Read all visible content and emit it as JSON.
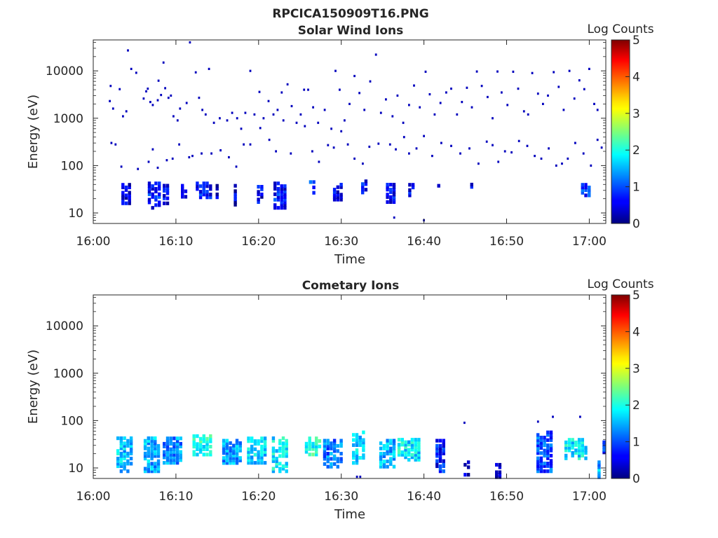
{
  "figure_title": "RPCICA150909T16.PNG",
  "chart_data": [
    {
      "type": "heatmap",
      "title": "Solar Wind Ions",
      "xlabel": "Time",
      "ylabel": "Energy (eV)",
      "y_scale": "log",
      "y_range": [
        6,
        45000
      ],
      "y_ticks": [
        10,
        100,
        1000,
        10000
      ],
      "y_tick_labels": [
        "10",
        "100",
        "1000",
        "10000"
      ],
      "x_range": [
        "16:00",
        "17:02"
      ],
      "x_tick_labels": [
        "16:00",
        "16:10",
        "16:20",
        "16:30",
        "16:40",
        "16:50",
        "17:00"
      ],
      "colorbar": {
        "label": "Log Counts",
        "range": [
          0,
          5
        ],
        "ticks": [
          "0",
          "1",
          "2",
          "3",
          "4",
          "5"
        ],
        "colormap": "jet"
      },
      "clusters": [
        {
          "t0": 3.4,
          "t1": 4.4,
          "e0": 15,
          "e1": 42,
          "v": 0.5
        },
        {
          "t0": 6.6,
          "t1": 8.0,
          "e0": 12,
          "e1": 45,
          "v": 0.7
        },
        {
          "t0": 8.4,
          "t1": 9.2,
          "e0": 15,
          "e1": 40,
          "v": 0.5
        },
        {
          "t0": 10.6,
          "t1": 11.2,
          "e0": 18,
          "e1": 40,
          "v": 0.4
        },
        {
          "t0": 12.4,
          "t1": 14.3,
          "e0": 20,
          "e1": 45,
          "v": 0.7
        },
        {
          "t0": 14.8,
          "t1": 15.2,
          "e0": 20,
          "e1": 40,
          "v": 0.4
        },
        {
          "t0": 17.0,
          "t1": 17.3,
          "e0": 14,
          "e1": 40,
          "v": 0.4
        },
        {
          "t0": 19.8,
          "t1": 20.3,
          "e0": 16,
          "e1": 38,
          "v": 0.5
        },
        {
          "t0": 21.8,
          "t1": 23.1,
          "e0": 12,
          "e1": 45,
          "v": 0.7
        },
        {
          "t0": 26.1,
          "t1": 26.9,
          "e0": 25,
          "e1": 48,
          "v": 1.0
        },
        {
          "t0": 29.0,
          "t1": 29.8,
          "e0": 18,
          "e1": 42,
          "v": 0.5
        },
        {
          "t0": 32.4,
          "t1": 33.0,
          "e0": 22,
          "e1": 50,
          "v": 0.6
        },
        {
          "t0": 35.4,
          "t1": 36.2,
          "e0": 16,
          "e1": 42,
          "v": 0.6
        },
        {
          "t0": 38.1,
          "t1": 38.9,
          "e0": 22,
          "e1": 42,
          "v": 0.6
        },
        {
          "t0": 41.6,
          "t1": 42.0,
          "e0": 24,
          "e1": 40,
          "v": 0.4
        },
        {
          "t0": 45.6,
          "t1": 46.0,
          "e0": 30,
          "e1": 42,
          "v": 0.4
        },
        {
          "t0": 59.0,
          "t1": 60.0,
          "e0": 22,
          "e1": 42,
          "v": 0.8
        }
      ],
      "points": [
        [
          2.0,
          2300
        ],
        [
          2.1,
          4800
        ],
        [
          2.4,
          1600
        ],
        [
          3.2,
          4100
        ],
        [
          3.6,
          1100
        ],
        [
          4.0,
          1400
        ],
        [
          4.2,
          27000
        ],
        [
          4.6,
          11000
        ],
        [
          5.2,
          9100
        ],
        [
          6.1,
          2600
        ],
        [
          6.4,
          3700
        ],
        [
          6.6,
          4200
        ],
        [
          6.9,
          2200
        ],
        [
          7.2,
          1900
        ],
        [
          7.8,
          2400
        ],
        [
          7.9,
          6200
        ],
        [
          8.2,
          3100
        ],
        [
          8.5,
          15000
        ],
        [
          8.7,
          4300
        ],
        [
          9.1,
          2700
        ],
        [
          9.4,
          3000
        ],
        [
          9.7,
          1100
        ],
        [
          10.2,
          900
        ],
        [
          10.5,
          1600
        ],
        [
          11.3,
          2100
        ],
        [
          12.4,
          9300
        ],
        [
          12.8,
          2700
        ],
        [
          13.2,
          1500
        ],
        [
          13.6,
          1200
        ],
        [
          14.0,
          11000
        ],
        [
          14.6,
          800
        ],
        [
          15.3,
          1000
        ],
        [
          16.2,
          900
        ],
        [
          16.8,
          1300
        ],
        [
          17.4,
          1000
        ],
        [
          17.9,
          600
        ],
        [
          18.4,
          1300
        ],
        [
          19.0,
          10000
        ],
        [
          19.5,
          1200
        ],
        [
          20.1,
          3600
        ],
        [
          20.6,
          1000
        ],
        [
          21.2,
          2300
        ],
        [
          21.8,
          1200
        ],
        [
          22.3,
          1500
        ],
        [
          22.8,
          3500
        ],
        [
          23.5,
          5200
        ],
        [
          24.0,
          1800
        ],
        [
          24.6,
          800
        ],
        [
          25.1,
          1200
        ],
        [
          25.5,
          4000
        ],
        [
          26.0,
          4000
        ],
        [
          26.6,
          1700
        ],
        [
          27.2,
          800
        ],
        [
          28.0,
          1500
        ],
        [
          28.8,
          600
        ],
        [
          29.3,
          10000
        ],
        [
          29.8,
          4000
        ],
        [
          30.4,
          900
        ],
        [
          31.0,
          2000
        ],
        [
          31.6,
          7800
        ],
        [
          32.2,
          3400
        ],
        [
          32.8,
          1500
        ],
        [
          33.5,
          6000
        ],
        [
          34.2,
          22000
        ],
        [
          34.8,
          1300
        ],
        [
          35.4,
          2500
        ],
        [
          36.2,
          1100
        ],
        [
          36.8,
          3000
        ],
        [
          37.5,
          800
        ],
        [
          38.2,
          1900
        ],
        [
          38.8,
          4900
        ],
        [
          39.5,
          1700
        ],
        [
          40.2,
          9600
        ],
        [
          40.7,
          3200
        ],
        [
          41.3,
          1200
        ],
        [
          42.0,
          2100
        ],
        [
          42.7,
          3500
        ],
        [
          43.3,
          4200
        ],
        [
          44.0,
          1200
        ],
        [
          44.6,
          2200
        ],
        [
          45.2,
          4400
        ],
        [
          45.8,
          1700
        ],
        [
          46.4,
          9700
        ],
        [
          47.0,
          4800
        ],
        [
          47.7,
          2800
        ],
        [
          48.3,
          1000
        ],
        [
          48.9,
          9700
        ],
        [
          49.4,
          3500
        ],
        [
          50.1,
          1900
        ],
        [
          50.8,
          9600
        ],
        [
          51.4,
          4200
        ],
        [
          52.1,
          1400
        ],
        [
          52.6,
          1200
        ],
        [
          53.1,
          9000
        ],
        [
          53.8,
          3300
        ],
        [
          54.4,
          2000
        ],
        [
          55.0,
          3000
        ],
        [
          55.7,
          9400
        ],
        [
          56.3,
          4600
        ],
        [
          56.9,
          1500
        ],
        [
          57.6,
          10000
        ],
        [
          58.2,
          2600
        ],
        [
          58.8,
          6300
        ],
        [
          59.4,
          4100
        ],
        [
          60.0,
          11000
        ],
        [
          60.6,
          2000
        ],
        [
          61.0,
          1500
        ],
        [
          2.2,
          300
        ],
        [
          2.7,
          280
        ],
        [
          3.4,
          95
        ],
        [
          5.4,
          85
        ],
        [
          6.7,
          120
        ],
        [
          7.2,
          220
        ],
        [
          7.8,
          90
        ],
        [
          8.9,
          130
        ],
        [
          9.6,
          140
        ],
        [
          10.4,
          280
        ],
        [
          11.6,
          150
        ],
        [
          12.0,
          160
        ],
        [
          13.1,
          180
        ],
        [
          14.3,
          180
        ],
        [
          15.4,
          210
        ],
        [
          16.4,
          150
        ],
        [
          17.3,
          95
        ],
        [
          18.2,
          280
        ],
        [
          19.0,
          280
        ],
        [
          20.2,
          620
        ],
        [
          21.3,
          350
        ],
        [
          22.1,
          200
        ],
        [
          23.0,
          900
        ],
        [
          23.9,
          180
        ],
        [
          25.6,
          680
        ],
        [
          26.5,
          200
        ],
        [
          27.3,
          120
        ],
        [
          28.4,
          270
        ],
        [
          29.1,
          240
        ],
        [
          30.0,
          530
        ],
        [
          30.8,
          280
        ],
        [
          31.6,
          140
        ],
        [
          32.6,
          110
        ],
        [
          33.4,
          250
        ],
        [
          34.5,
          290
        ],
        [
          35.9,
          280
        ],
        [
          36.6,
          220
        ],
        [
          37.6,
          400
        ],
        [
          38.2,
          180
        ],
        [
          39.1,
          230
        ],
        [
          40.0,
          420
        ],
        [
          41.0,
          160
        ],
        [
          42.1,
          300
        ],
        [
          43.3,
          260
        ],
        [
          44.4,
          180
        ],
        [
          45.5,
          230
        ],
        [
          46.6,
          110
        ],
        [
          47.6,
          320
        ],
        [
          48.3,
          270
        ],
        [
          49.0,
          120
        ],
        [
          49.8,
          200
        ],
        [
          50.6,
          190
        ],
        [
          51.5,
          330
        ],
        [
          52.5,
          260
        ],
        [
          53.4,
          160
        ],
        [
          54.2,
          140
        ],
        [
          55.1,
          230
        ],
        [
          56.0,
          100
        ],
        [
          56.7,
          110
        ],
        [
          57.4,
          140
        ],
        [
          58.3,
          300
        ],
        [
          59.3,
          180
        ],
        [
          60.2,
          100
        ],
        [
          61.0,
          350
        ],
        [
          61.5,
          240
        ],
        [
          11.7,
          40000
        ],
        [
          36.4,
          8
        ],
        [
          40.0,
          7
        ]
      ]
    },
    {
      "type": "heatmap",
      "title": "Cometary Ions",
      "xlabel": "Time",
      "ylabel": "Energy (eV)",
      "y_scale": "log",
      "y_range": [
        6,
        45000
      ],
      "y_ticks": [
        10,
        100,
        1000,
        10000
      ],
      "y_tick_labels": [
        "10",
        "100",
        "1000",
        "10000"
      ],
      "x_range": [
        "16:00",
        "17:02"
      ],
      "x_tick_labels": [
        "16:00",
        "16:10",
        "16:20",
        "16:30",
        "16:40",
        "16:50",
        "17:00"
      ],
      "colorbar": {
        "label": "Log Counts",
        "range": [
          0,
          5
        ],
        "ticks": [
          "0",
          "1",
          "2",
          "3",
          "4",
          "5"
        ],
        "colormap": "jet"
      },
      "clusters": [
        {
          "t0": 2.8,
          "t1": 4.6,
          "e0": 8,
          "e1": 45,
          "v": 1.6
        },
        {
          "t0": 6.1,
          "t1": 7.9,
          "e0": 8,
          "e1": 45,
          "v": 1.5
        },
        {
          "t0": 8.4,
          "t1": 10.6,
          "e0": 12,
          "e1": 45,
          "v": 1.3
        },
        {
          "t0": 12.0,
          "t1": 14.2,
          "e0": 18,
          "e1": 50,
          "v": 2.0
        },
        {
          "t0": 15.6,
          "t1": 17.6,
          "e0": 12,
          "e1": 40,
          "v": 1.4
        },
        {
          "t0": 18.6,
          "t1": 20.6,
          "e0": 12,
          "e1": 45,
          "v": 1.6
        },
        {
          "t0": 21.6,
          "t1": 23.4,
          "e0": 8,
          "e1": 45,
          "v": 1.8
        },
        {
          "t0": 25.6,
          "t1": 27.2,
          "e0": 18,
          "e1": 45,
          "v": 2.0
        },
        {
          "t0": 27.8,
          "t1": 30.0,
          "e0": 10,
          "e1": 40,
          "v": 1.2
        },
        {
          "t0": 31.3,
          "t1": 32.8,
          "e0": 12,
          "e1": 60,
          "v": 1.6
        },
        {
          "t0": 34.6,
          "t1": 36.3,
          "e0": 10,
          "e1": 40,
          "v": 1.5
        },
        {
          "t0": 36.8,
          "t1": 39.3,
          "e0": 14,
          "e1": 42,
          "v": 1.8
        },
        {
          "t0": 41.4,
          "t1": 42.4,
          "e0": 8,
          "e1": 40,
          "v": 0.7
        },
        {
          "t0": 44.8,
          "t1": 45.2,
          "e0": 6,
          "e1": 14,
          "v": 0.3
        },
        {
          "t0": 48.6,
          "t1": 49.2,
          "e0": 6,
          "e1": 14,
          "v": 0.3
        },
        {
          "t0": 53.6,
          "t1": 55.4,
          "e0": 8,
          "e1": 60,
          "v": 1.0
        },
        {
          "t0": 57.0,
          "t1": 59.4,
          "e0": 15,
          "e1": 42,
          "v": 1.8
        },
        {
          "t0": 61.0,
          "t1": 61.4,
          "e0": 6,
          "e1": 14,
          "v": 1.5
        },
        {
          "t0": 61.6,
          "t1": 62.0,
          "e0": 20,
          "e1": 42,
          "v": 0.8
        }
      ],
      "points": [
        [
          44.9,
          90
        ],
        [
          53.8,
          95
        ],
        [
          55.6,
          120
        ],
        [
          58.9,
          120
        ],
        [
          31.9,
          6.5
        ],
        [
          32.3,
          6.5
        ]
      ]
    }
  ]
}
